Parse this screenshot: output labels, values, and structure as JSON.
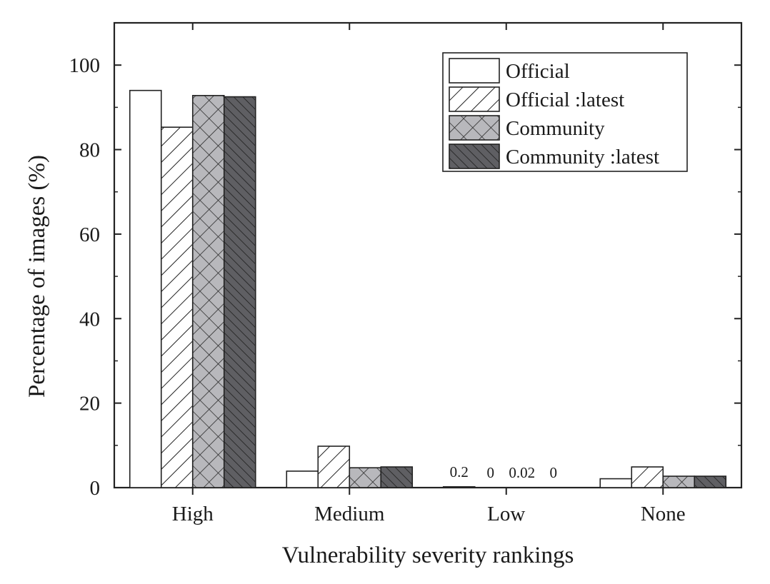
{
  "chart_data": {
    "type": "bar",
    "xlabel": "Vulnerability severity rankings",
    "ylabel": "Percentage of images (%)",
    "categories": [
      "High",
      "Medium",
      "Low",
      "None"
    ],
    "ylim": [
      0,
      110
    ],
    "yticks": [
      0,
      20,
      40,
      60,
      80,
      100
    ],
    "grid": false,
    "legend_position": "top-right",
    "series": [
      {
        "name": "Official",
        "values": [
          94,
          3.9,
          0.2,
          2.1
        ],
        "fill": "#ffffff",
        "pattern": "none"
      },
      {
        "name": "Official :latest",
        "values": [
          85.3,
          9.8,
          0,
          4.9
        ],
        "fill": "#ffffff",
        "pattern": "backslash"
      },
      {
        "name": "Community",
        "values": [
          92.8,
          4.7,
          0.02,
          2.7
        ],
        "fill": "#b8b8bc",
        "pattern": "cross"
      },
      {
        "name": "Community :latest",
        "values": [
          92.5,
          4.9,
          0,
          2.7
        ],
        "fill": "#5f5f63",
        "pattern": "forwardslash"
      }
    ],
    "annotations": [
      {
        "category": "Low",
        "series": "Official",
        "text": "0.2"
      },
      {
        "category": "Low",
        "series": "Official :latest",
        "text": "0"
      },
      {
        "category": "Low",
        "series": "Community",
        "text": "0.02"
      },
      {
        "category": "Low",
        "series": "Community :latest",
        "text": "0"
      }
    ]
  }
}
